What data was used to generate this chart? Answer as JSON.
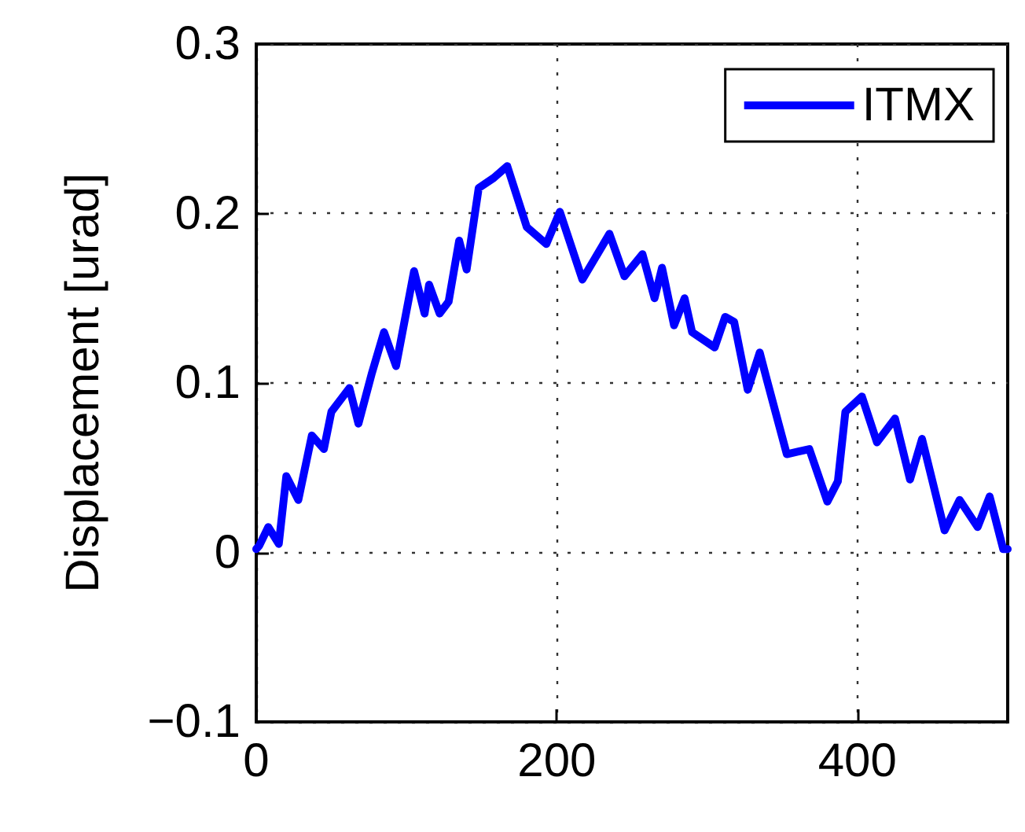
{
  "chart_data": {
    "type": "line",
    "ylabel": "Displacement [urad]",
    "x": [
      0,
      2,
      8,
      15,
      20,
      28,
      37,
      45,
      50,
      62,
      68,
      77,
      85,
      93,
      105,
      112,
      115,
      122,
      128,
      135,
      140,
      148,
      158,
      167,
      180,
      193,
      202,
      217,
      235,
      245,
      257,
      265,
      270,
      278,
      285,
      290,
      305,
      312,
      318,
      327,
      335,
      340,
      353,
      368,
      380,
      387,
      392,
      403,
      413,
      425,
      435,
      443,
      458,
      468,
      480,
      488,
      497,
      500
    ],
    "series": [
      {
        "name": "ITMX",
        "color": "#0000ff",
        "values": [
          0.002,
          0.004,
          0.015,
          0.005,
          0.045,
          0.031,
          0.069,
          0.061,
          0.083,
          0.097,
          0.076,
          0.106,
          0.13,
          0.11,
          0.166,
          0.141,
          0.158,
          0.141,
          0.148,
          0.184,
          0.167,
          0.215,
          0.221,
          0.228,
          0.192,
          0.182,
          0.201,
          0.161,
          0.188,
          0.163,
          0.176,
          0.15,
          0.168,
          0.134,
          0.15,
          0.13,
          0.121,
          0.139,
          0.136,
          0.096,
          0.118,
          0.101,
          0.058,
          0.061,
          0.03,
          0.042,
          0.083,
          0.092,
          0.065,
          0.079,
          0.043,
          0.067,
          0.013,
          0.031,
          0.015,
          0.033,
          0.002,
          0.002
        ]
      }
    ],
    "xlim": [
      0,
      500
    ],
    "xticks": [
      0,
      200,
      400
    ],
    "ylim": [
      -0.1,
      0.3
    ],
    "yticks": [
      {
        "value": -0.1,
        "label": "−0.1"
      },
      0,
      0.1,
      0.2,
      0.3
    ],
    "grid": true,
    "legend": "top right",
    "marker": "none",
    "line_style": "solid"
  }
}
